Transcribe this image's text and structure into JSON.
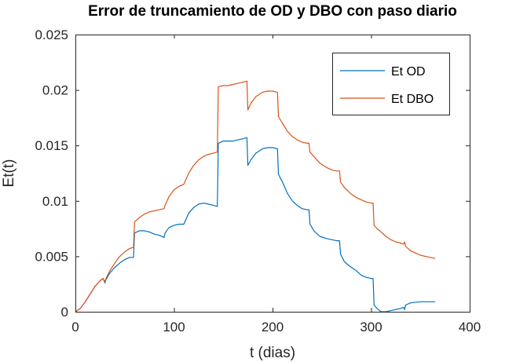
{
  "chart_data": {
    "type": "line",
    "title": "Error de truncamiento de OD y DBO con paso diario",
    "xlabel": "t (dias)",
    "ylabel": "Et(t)",
    "xlim": [
      0,
      400
    ],
    "ylim": [
      0,
      0.025
    ],
    "x_ticks": [
      0,
      100,
      200,
      300,
      400
    ],
    "x_tick_labels": [
      "0",
      "100",
      "200",
      "300",
      "400"
    ],
    "y_ticks": [
      0,
      0.005,
      0.01,
      0.015,
      0.02,
      0.025
    ],
    "y_tick_labels": [
      "0",
      "0.005",
      "0.01",
      "0.015",
      "0.02",
      "0.025"
    ],
    "grid": false,
    "legend_position": "top-right",
    "series": [
      {
        "name": "Et OD",
        "color": "#0072BD",
        "points": [
          [
            0,
            0
          ],
          [
            5,
            0.0003
          ],
          [
            10,
            0.0009
          ],
          [
            15,
            0.0016
          ],
          [
            20,
            0.0023
          ],
          [
            25,
            0.0028
          ],
          [
            28,
            0.003
          ],
          [
            30,
            0.0026
          ],
          [
            31,
            0.0029
          ],
          [
            35,
            0.0035
          ],
          [
            40,
            0.004
          ],
          [
            45,
            0.0044
          ],
          [
            50,
            0.0047
          ],
          [
            55,
            0.0049
          ],
          [
            59,
            0.0049
          ],
          [
            60,
            0.0071
          ],
          [
            65,
            0.0073
          ],
          [
            70,
            0.0073
          ],
          [
            75,
            0.0072
          ],
          [
            80,
            0.007
          ],
          [
            85,
            0.0069
          ],
          [
            90,
            0.0067
          ],
          [
            91,
            0.0071
          ],
          [
            95,
            0.0076
          ],
          [
            100,
            0.0078
          ],
          [
            105,
            0.0079
          ],
          [
            110,
            0.0079
          ],
          [
            111,
            0.0081
          ],
          [
            115,
            0.0089
          ],
          [
            120,
            0.0094
          ],
          [
            125,
            0.0097
          ],
          [
            130,
            0.0098
          ],
          [
            135,
            0.0097
          ],
          [
            140,
            0.0096
          ],
          [
            144,
            0.0095
          ],
          [
            145,
            0.0152
          ],
          [
            150,
            0.0154
          ],
          [
            155,
            0.0154
          ],
          [
            160,
            0.0154
          ],
          [
            165,
            0.0155
          ],
          [
            170,
            0.0156
          ],
          [
            174,
            0.0157
          ],
          [
            175,
            0.0132
          ],
          [
            178,
            0.0137
          ],
          [
            183,
            0.0143
          ],
          [
            190,
            0.0147
          ],
          [
            195,
            0.0148
          ],
          [
            200,
            0.0148
          ],
          [
            205,
            0.0147
          ],
          [
            206,
            0.0124
          ],
          [
            210,
            0.0117
          ],
          [
            215,
            0.0107
          ],
          [
            220,
            0.01
          ],
          [
            225,
            0.0096
          ],
          [
            230,
            0.0093
          ],
          [
            235,
            0.0092
          ],
          [
            237,
            0.0092
          ],
          [
            238,
            0.0079
          ],
          [
            242,
            0.0073
          ],
          [
            248,
            0.0068
          ],
          [
            255,
            0.0066
          ],
          [
            260,
            0.0065
          ],
          [
            265,
            0.0064
          ],
          [
            268,
            0.0064
          ],
          [
            269,
            0.0052
          ],
          [
            273,
            0.0045
          ],
          [
            280,
            0.004
          ],
          [
            285,
            0.0037
          ],
          [
            290,
            0.0033
          ],
          [
            295,
            0.0031
          ],
          [
            300,
            0.003
          ],
          [
            302,
            0.003
          ],
          [
            303,
            0.0006
          ],
          [
            306,
            0.0003
          ],
          [
            310,
            0.0
          ],
          [
            315,
            0.0
          ],
          [
            320,
            0.0001
          ],
          [
            325,
            0.0002
          ],
          [
            330,
            0.0003
          ],
          [
            333,
            0.0004
          ],
          [
            334,
            0.0002
          ],
          [
            335,
            0.0006
          ],
          [
            340,
            0.0008
          ],
          [
            350,
            0.0009
          ],
          [
            360,
            0.0009
          ],
          [
            365,
            0.0009
          ]
        ]
      },
      {
        "name": "Et DBO",
        "color": "#D95319",
        "points": [
          [
            0,
            0
          ],
          [
            5,
            0.0003
          ],
          [
            10,
            0.0009
          ],
          [
            15,
            0.0016
          ],
          [
            20,
            0.0023
          ],
          [
            25,
            0.0028
          ],
          [
            28,
            0.003
          ],
          [
            30,
            0.0027
          ],
          [
            31,
            0.003
          ],
          [
            35,
            0.0037
          ],
          [
            40,
            0.0044
          ],
          [
            45,
            0.005
          ],
          [
            50,
            0.0054
          ],
          [
            55,
            0.0057
          ],
          [
            59,
            0.0058
          ],
          [
            60,
            0.0081
          ],
          [
            65,
            0.0085
          ],
          [
            70,
            0.0088
          ],
          [
            75,
            0.009
          ],
          [
            80,
            0.0091
          ],
          [
            85,
            0.0092
          ],
          [
            90,
            0.0093
          ],
          [
            91,
            0.0096
          ],
          [
            95,
            0.0104
          ],
          [
            100,
            0.011
          ],
          [
            105,
            0.0113
          ],
          [
            110,
            0.0115
          ],
          [
            111,
            0.0117
          ],
          [
            115,
            0.0125
          ],
          [
            120,
            0.0132
          ],
          [
            125,
            0.0137
          ],
          [
            130,
            0.014
          ],
          [
            135,
            0.0142
          ],
          [
            140,
            0.0143
          ],
          [
            144,
            0.0144
          ],
          [
            145,
            0.0203
          ],
          [
            150,
            0.0204
          ],
          [
            155,
            0.0204
          ],
          [
            160,
            0.0205
          ],
          [
            165,
            0.0206
          ],
          [
            170,
            0.0207
          ],
          [
            174,
            0.0208
          ],
          [
            175,
            0.0182
          ],
          [
            178,
            0.0188
          ],
          [
            183,
            0.0194
          ],
          [
            190,
            0.0198
          ],
          [
            195,
            0.0199
          ],
          [
            200,
            0.0199
          ],
          [
            205,
            0.0198
          ],
          [
            206,
            0.0176
          ],
          [
            210,
            0.017
          ],
          [
            215,
            0.0163
          ],
          [
            220,
            0.0158
          ],
          [
            225,
            0.0155
          ],
          [
            230,
            0.0153
          ],
          [
            235,
            0.0152
          ],
          [
            237,
            0.0152
          ],
          [
            238,
            0.0144
          ],
          [
            242,
            0.014
          ],
          [
            248,
            0.0134
          ],
          [
            255,
            0.013
          ],
          [
            260,
            0.0128
          ],
          [
            265,
            0.0127
          ],
          [
            268,
            0.0127
          ],
          [
            269,
            0.0117
          ],
          [
            273,
            0.0112
          ],
          [
            280,
            0.0106
          ],
          [
            285,
            0.0103
          ],
          [
            290,
            0.0101
          ],
          [
            295,
            0.0099
          ],
          [
            300,
            0.0098
          ],
          [
            302,
            0.0098
          ],
          [
            303,
            0.0078
          ],
          [
            306,
            0.0075
          ],
          [
            310,
            0.0072
          ],
          [
            315,
            0.0068
          ],
          [
            320,
            0.0065
          ],
          [
            325,
            0.0063
          ],
          [
            330,
            0.0062
          ],
          [
            333,
            0.0061
          ],
          [
            334,
            0.0063
          ],
          [
            335,
            0.0059
          ],
          [
            340,
            0.0055
          ],
          [
            345,
            0.0053
          ],
          [
            350,
            0.0051
          ],
          [
            355,
            0.005
          ],
          [
            360,
            0.0049
          ],
          [
            365,
            0.0048
          ]
        ]
      }
    ]
  }
}
